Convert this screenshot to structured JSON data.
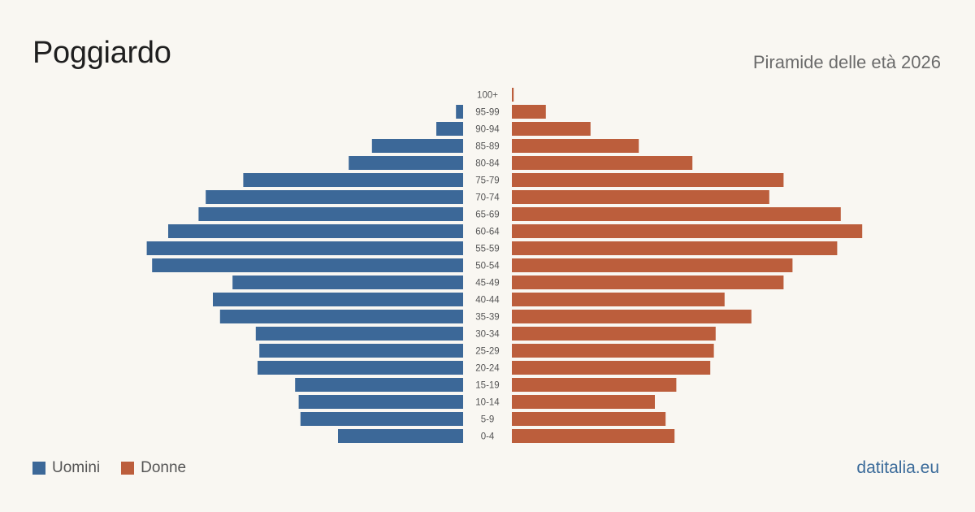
{
  "header": {
    "title": "Poggiardo",
    "subtitle": "Piramide delle età 2026"
  },
  "footer": {
    "source": "datitalia.eu"
  },
  "colors": {
    "men": "#3c6898",
    "women": "#bc5e3c",
    "background": "#f9f7f2"
  },
  "chart_data": {
    "type": "bar",
    "orientation": "horizontal-pyramid",
    "categories": [
      "100+",
      "95-99",
      "90-94",
      "85-89",
      "80-84",
      "75-79",
      "70-74",
      "65-69",
      "60-64",
      "55-59",
      "50-54",
      "45-49",
      "40-44",
      "35-39",
      "30-34",
      "25-29",
      "20-24",
      "15-19",
      "10-14",
      "5-9",
      "0-4"
    ],
    "series": [
      {
        "name": "Uomini",
        "values": [
          0,
          4,
          15,
          51,
          64,
          123,
          144,
          148,
          165,
          177,
          174,
          129,
          140,
          136,
          116,
          114,
          115,
          94,
          92,
          91,
          70
        ]
      },
      {
        "name": "Donne",
        "values": [
          1,
          19,
          44,
          71,
          101,
          152,
          144,
          184,
          196,
          182,
          157,
          152,
          119,
          134,
          114,
          113,
          111,
          92,
          80,
          86,
          91
        ]
      }
    ],
    "legend_position": "bottom-left",
    "grid": false
  }
}
